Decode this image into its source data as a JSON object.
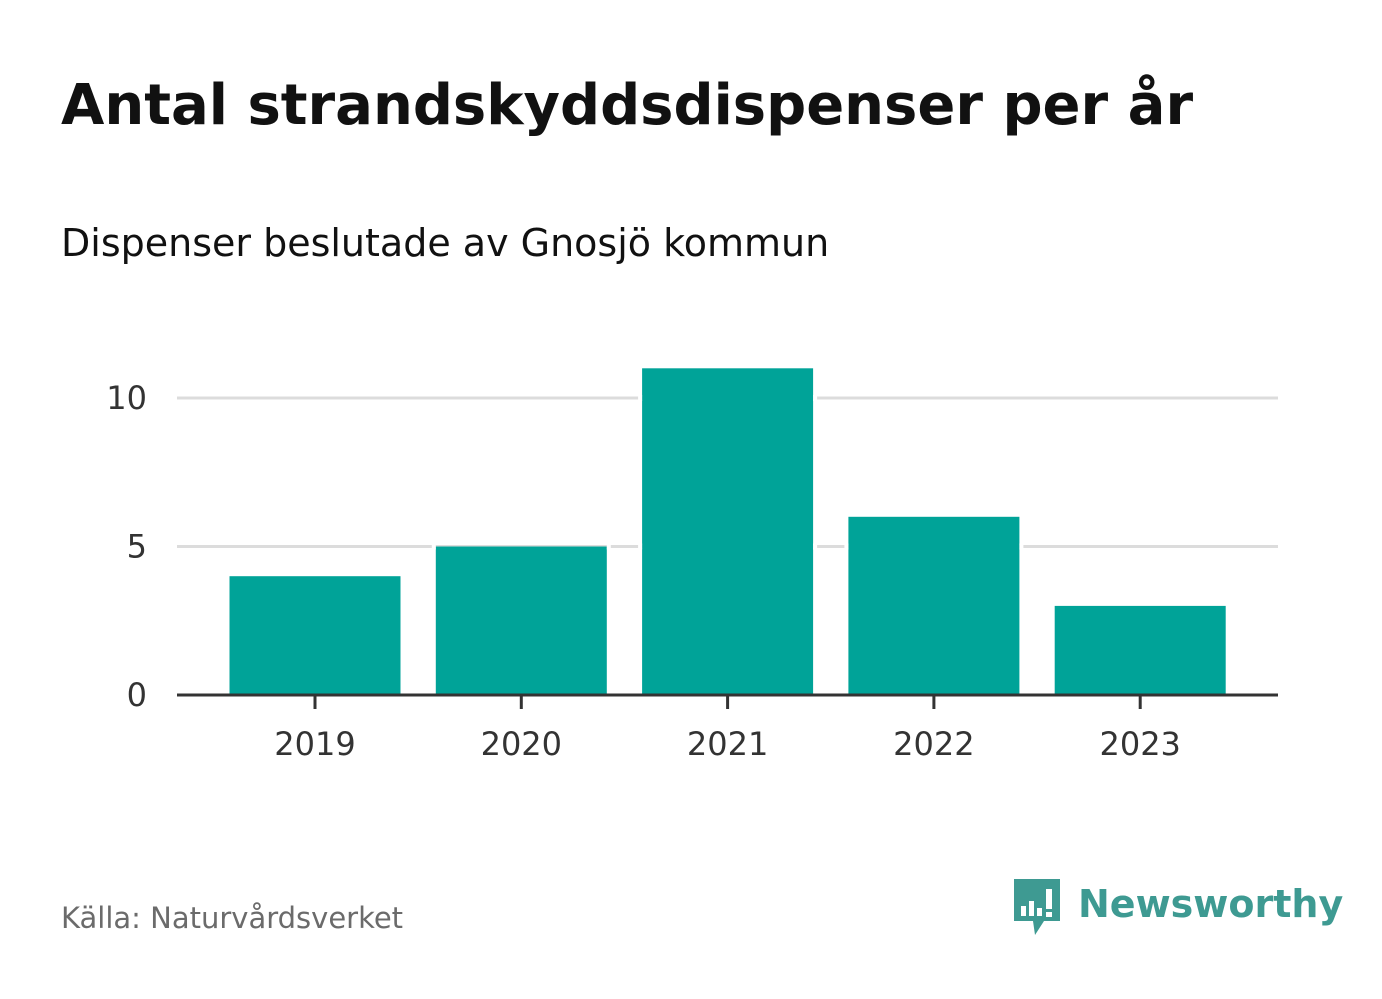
{
  "chart_data": {
    "type": "bar",
    "title": "Antal strandskyddsdispenser per år",
    "subtitle": "Dispenser beslutade av Gnosjö kommun",
    "categories": [
      "2019",
      "2020",
      "2021",
      "2022",
      "2023"
    ],
    "values": [
      4,
      5,
      11,
      6,
      3
    ],
    "xlabel": "",
    "ylabel": "",
    "ylim": [
      0,
      12
    ],
    "yticks": [
      0,
      5,
      10
    ],
    "ytick_labels": [
      "0",
      "5",
      "10"
    ],
    "grid": true,
    "bar_color": "#00a398"
  },
  "source": "Källa: Naturvårdsverket",
  "brand": {
    "name": "Newsworthy",
    "icon": "newsworthy-logo-icon",
    "color": "#3e9a92"
  }
}
